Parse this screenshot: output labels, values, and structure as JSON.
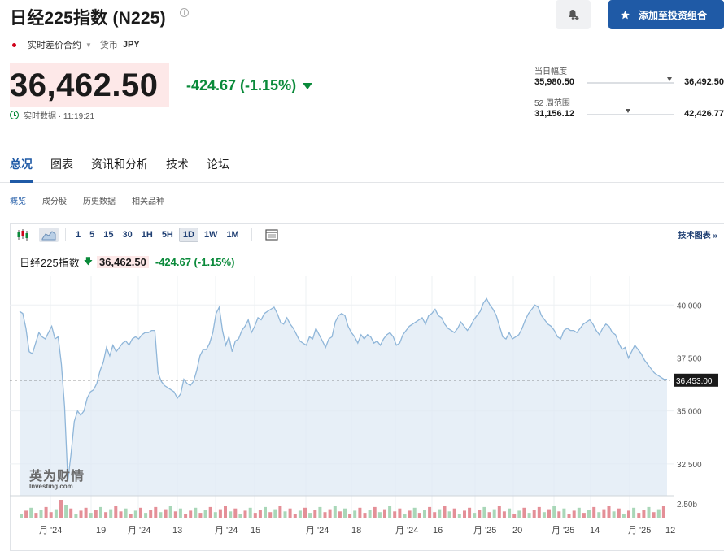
{
  "header": {
    "title": "日经225指数 (N225)",
    "info_glyph": "i",
    "add_button_label": "添加至投资组合",
    "contract_type": "实时差价合约",
    "currency_label": "货币",
    "currency": "JPY"
  },
  "quote": {
    "price": "36,462.50",
    "change": "-424.67 (-1.15%)",
    "realtime_text": "实时数据 · 11:19:21"
  },
  "ranges": {
    "day": {
      "label": "当日幅度",
      "low": "35,980.50",
      "high": "36,492.50",
      "position": 0.94
    },
    "week52": {
      "label": "52 周范围",
      "low": "31,156.12",
      "high": "42,426.77",
      "position": 0.47
    }
  },
  "tabs": [
    {
      "label": "总况",
      "active": true
    },
    {
      "label": "图表",
      "active": false
    },
    {
      "label": "资讯和分析",
      "active": false
    },
    {
      "label": "技术",
      "active": false
    },
    {
      "label": "论坛",
      "active": false
    }
  ],
  "subtabs": [
    {
      "label": "概览",
      "active": true
    },
    {
      "label": "成分股",
      "active": false
    },
    {
      "label": "历史数据",
      "active": false
    },
    {
      "label": "相关品种",
      "active": false
    }
  ],
  "toolbar": {
    "intervals": [
      {
        "label": "1",
        "active": false
      },
      {
        "label": "5",
        "active": false
      },
      {
        "label": "15",
        "active": false
      },
      {
        "label": "30",
        "active": false
      },
      {
        "label": "1H",
        "active": false
      },
      {
        "label": "5H",
        "active": false
      },
      {
        "label": "1D",
        "active": true
      },
      {
        "label": "1W",
        "active": false
      },
      {
        "label": "1M",
        "active": false
      }
    ],
    "tech_chart_link": "技术图表 »"
  },
  "chart_header": {
    "name": "日经225指数",
    "arrow": "🡇",
    "price": "36,462.50",
    "change": "-424.67 (-1.15%)"
  },
  "watermark": {
    "cn": "英为财情",
    "en": "Investing.com"
  },
  "colors": {
    "accent": "#1f5aa6",
    "up": "#0a8a3a",
    "down": "#d0021b",
    "area": "#dfeaf4",
    "line": "#8fb6d9"
  },
  "chart_data": {
    "type": "area",
    "ylim": [
      31000,
      41200
    ],
    "yticks": [
      {
        "value": 40000,
        "label": "40,000"
      },
      {
        "value": 37500,
        "label": "37,500"
      },
      {
        "value": 35000,
        "label": "35,000"
      },
      {
        "value": 32500,
        "label": "32,500"
      }
    ],
    "current_value": 36453,
    "current_label": "36,453.00",
    "volume_label": "2.50b",
    "x_labels": [
      "月 '24",
      "19",
      "月 '24",
      "13",
      "月 '24",
      "15",
      "月 '24",
      "18",
      "月 '24",
      "16",
      "月 '25",
      "20",
      "月 '25",
      "14",
      "月 '25",
      "12"
    ],
    "values": [
      39700,
      39600,
      38900,
      37800,
      37700,
      38200,
      38700,
      38500,
      38400,
      38700,
      39000,
      38400,
      38500,
      37200,
      35200,
      31700,
      33000,
      34500,
      35000,
      34800,
      35000,
      35600,
      35900,
      36000,
      36300,
      36900,
      37300,
      38000,
      37600,
      38100,
      37800,
      38000,
      38200,
      38300,
      38100,
      38400,
      38500,
      38400,
      38600,
      38700,
      38700,
      38800,
      38800,
      36800,
      36400,
      36200,
      36100,
      36000,
      35900,
      35600,
      35800,
      36500,
      36300,
      36200,
      36400,
      36900,
      37600,
      37900,
      37900,
      38200,
      38700,
      39600,
      39900,
      38800,
      38100,
      38500,
      37800,
      38300,
      38400,
      38800,
      39000,
      39300,
      38700,
      39000,
      39400,
      39300,
      39600,
      39700,
      39800,
      39900,
      39600,
      39200,
      39100,
      39400,
      39100,
      38900,
      38600,
      38300,
      38200,
      38100,
      38500,
      38400,
      38900,
      38600,
      38300,
      38000,
      38400,
      38500,
      39200,
      39500,
      39600,
      39500,
      39000,
      38700,
      38500,
      38200,
      38600,
      38400,
      38600,
      38500,
      38200,
      38300,
      38100,
      38400,
      38600,
      38700,
      38500,
      38100,
      38200,
      38600,
      38800,
      39000,
      39100,
      39200,
      39300,
      39400,
      39100,
      39500,
      39600,
      39800,
      39500,
      39400,
      39100,
      38900,
      38800,
      38700,
      38900,
      39200,
      39000,
      38800,
      39000,
      39300,
      39500,
      39700,
      40100,
      40300,
      40000,
      39800,
      39500,
      39000,
      38500,
      38400,
      38700,
      38400,
      38500,
      38600,
      38900,
      39300,
      39600,
      39800,
      40000,
      39900,
      39500,
      39300,
      39100,
      39000,
      38800,
      38500,
      38400,
      38800,
      38900,
      38800,
      38800,
      38700,
      38900,
      39100,
      39200,
      39300,
      39100,
      38800,
      38600,
      38900,
      39100,
      39000,
      38700,
      38600,
      38200,
      37900,
      38000,
      37500,
      37800,
      38100,
      37900,
      37700,
      37400,
      37200,
      37000,
      36800,
      36700,
      36600,
      36500,
      36500
    ]
  }
}
